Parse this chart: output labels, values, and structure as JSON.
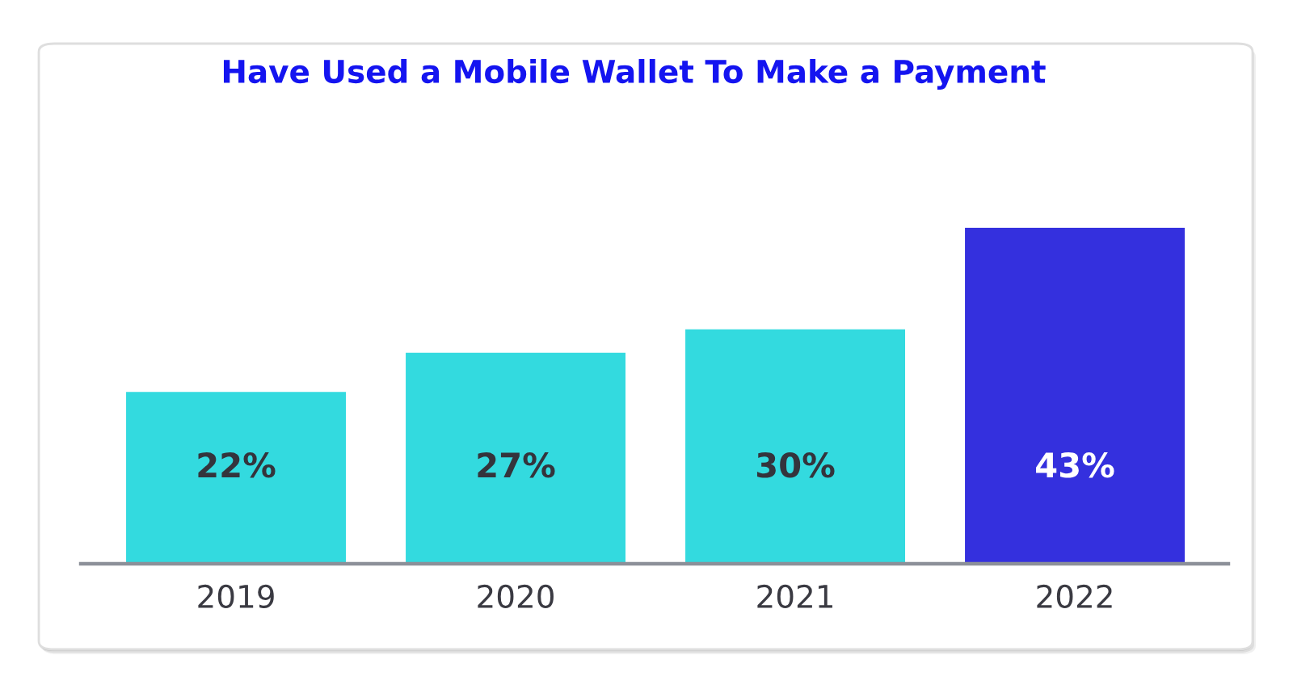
{
  "chart_data": {
    "type": "bar",
    "title": "Have Used a Mobile Wallet To Make a Payment",
    "categories": [
      "2019",
      "2020",
      "2021",
      "2022"
    ],
    "values": [
      22,
      27,
      30,
      43
    ],
    "colors": [
      "#33dadf",
      "#33dadf",
      "#33dadf",
      "#3430de"
    ],
    "value_labels": [
      "22%",
      "27%",
      "30%",
      "43%"
    ]
  }
}
